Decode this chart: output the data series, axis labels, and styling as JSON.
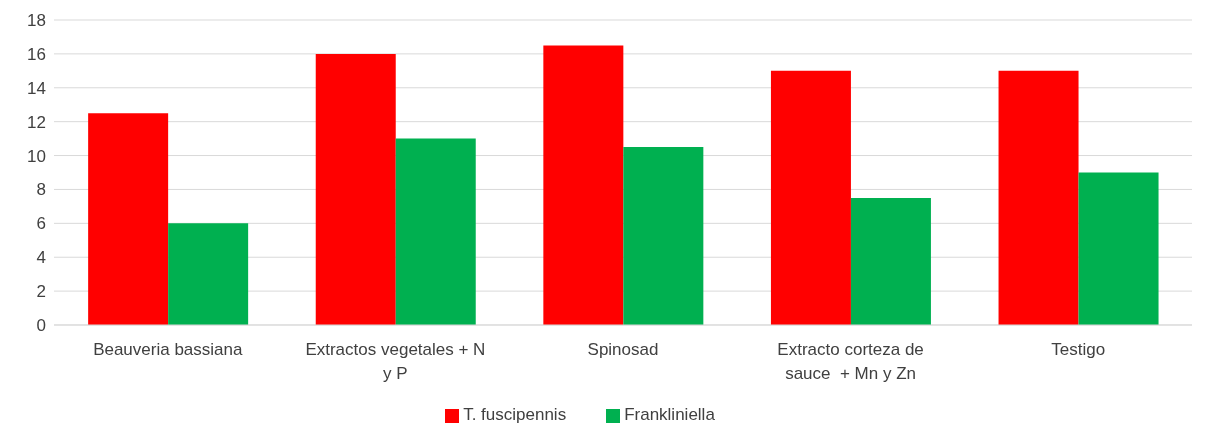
{
  "chart_data": {
    "type": "bar",
    "categories": [
      "Beauveria bassiana",
      "Extractos vegetales + N y P",
      "Spinosad",
      "Extracto corteza de sauce  + Mn y Zn",
      "Testigo"
    ],
    "series": [
      {
        "name": "T. fuscipennis",
        "color": "#ff0000",
        "values": [
          12.5,
          16,
          16.5,
          15,
          15
        ]
      },
      {
        "name": "Frankliniella",
        "color": "#00b050",
        "values": [
          6,
          11,
          10.5,
          7.5,
          9
        ]
      }
    ],
    "ylim": [
      0,
      18
    ],
    "yticks": [
      0,
      2,
      4,
      6,
      8,
      10,
      12,
      14,
      16,
      18
    ],
    "grid": "y",
    "legend": "bottom"
  }
}
